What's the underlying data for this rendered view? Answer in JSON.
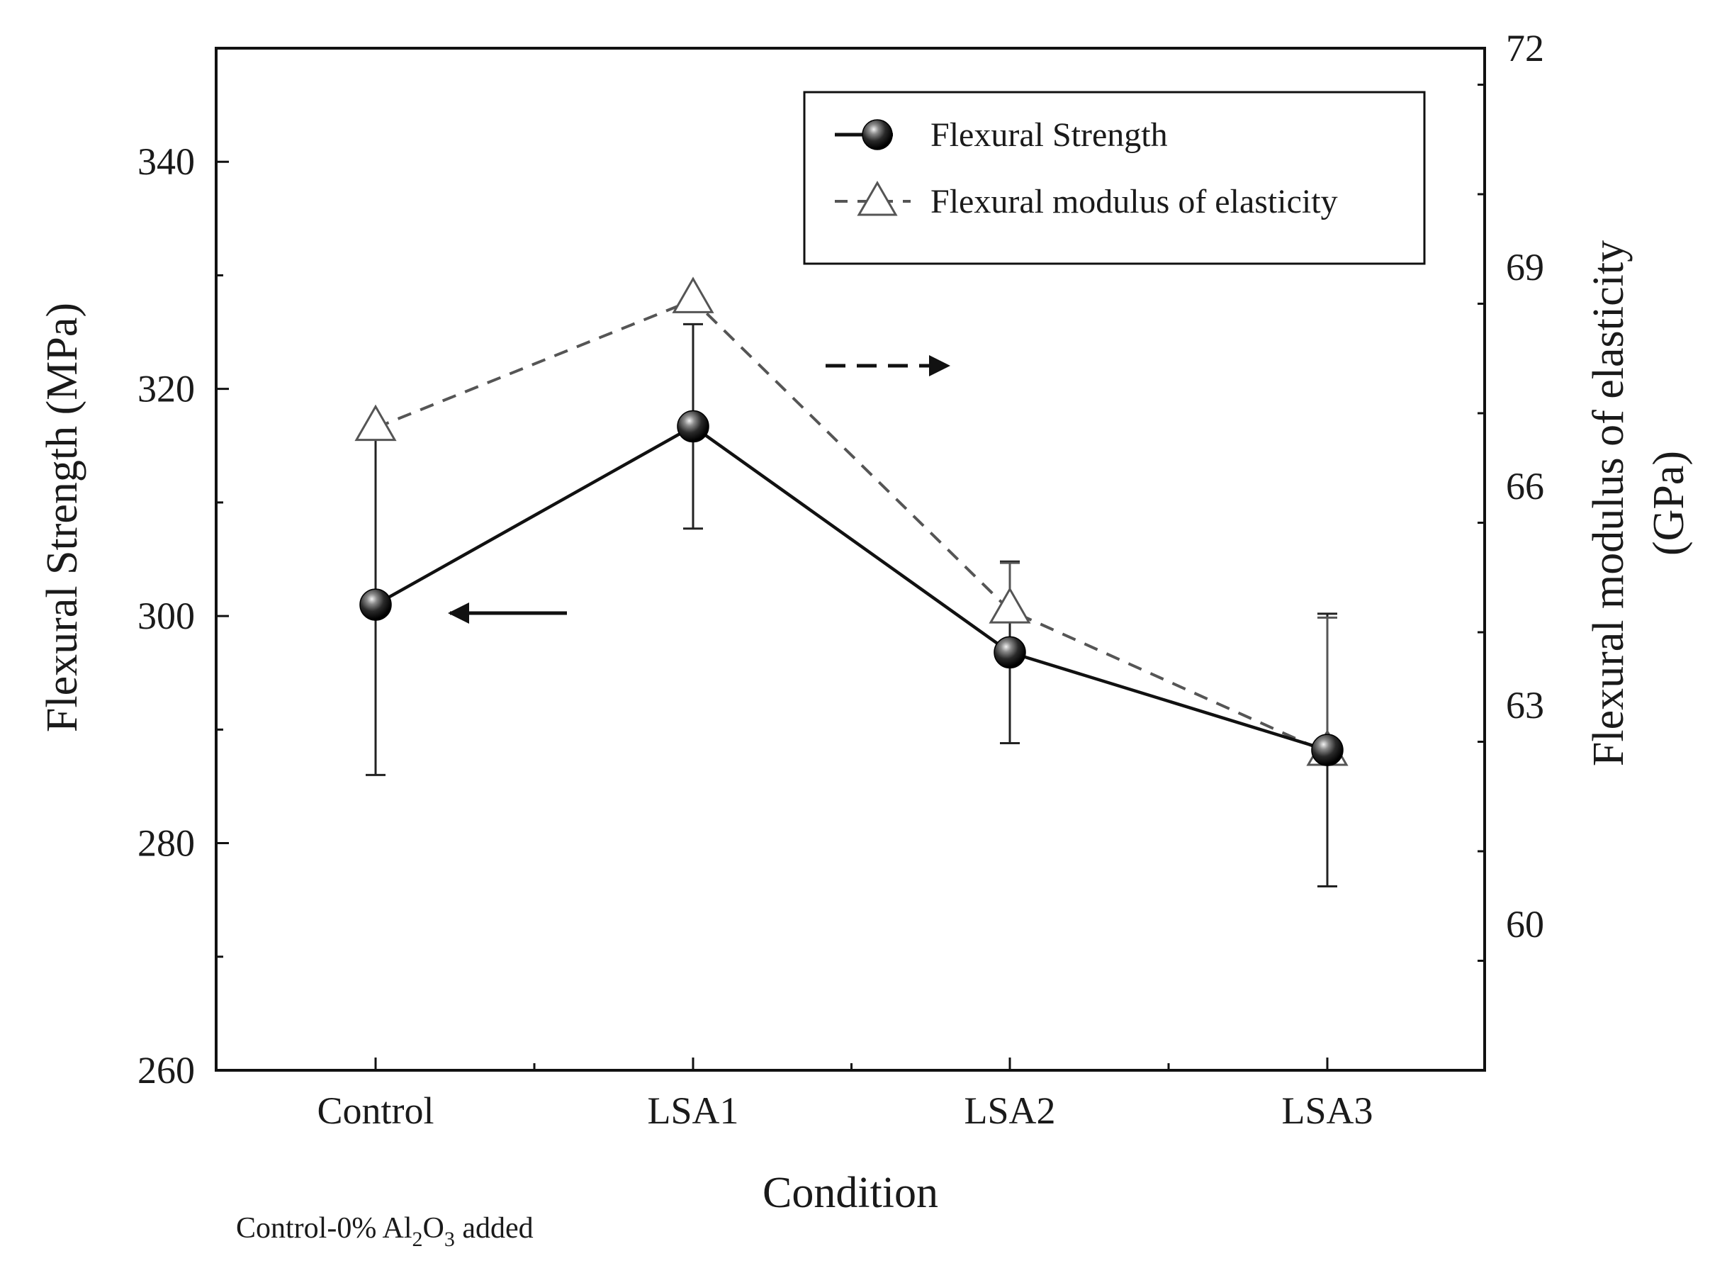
{
  "chart_data": {
    "type": "line",
    "categories": [
      "Control",
      "LSA1",
      "LSA2",
      "LSA3"
    ],
    "xlabel": "Condition",
    "ylabel_left": "Flexural Strength (MPa)",
    "ylabel_right_line1": "Flexural modulus of elasticity",
    "ylabel_right_line2": "(GPa)",
    "ylim_left": [
      260,
      350
    ],
    "yticks_left": [
      260,
      280,
      300,
      320,
      340
    ],
    "ylim_right": [
      58,
      72
    ],
    "yticks_right": [
      60,
      63,
      66,
      69,
      72
    ],
    "series": [
      {
        "name": "Flexural Strength",
        "axis": "left",
        "values": [
          301,
          316.7,
          296.8,
          288.2
        ],
        "error": [
          15,
          9,
          8,
          12
        ],
        "marker": "filled-sphere",
        "line": "solid",
        "color": "#111111"
      },
      {
        "name": "Flexural modulus of elasticity",
        "axis": "right",
        "values": [
          66.8,
          68.55,
          64.3,
          62.35
        ],
        "error_upper": [
          null,
          null,
          64.95,
          64.2
        ],
        "error_lower": [
          null,
          null,
          null,
          null
        ],
        "marker": "open-triangle",
        "line": "dashed",
        "color": "#555555"
      }
    ],
    "legend": {
      "position": "top-right",
      "entries": [
        "Flexural Strength",
        "Flexural modulus of elasticity"
      ]
    },
    "annotations": {
      "left_arrow": "points to left axis",
      "right_arrow": "points to right axis"
    },
    "footnote": {
      "prefix": "Control-0% Al",
      "sub1": "2",
      "mid": "O",
      "sub2": "3",
      "suffix": " added"
    }
  }
}
